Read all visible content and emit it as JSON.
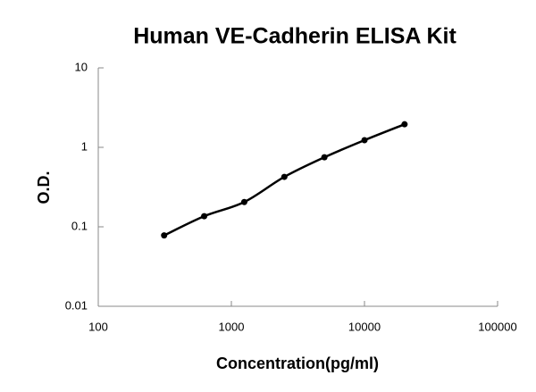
{
  "chart_data": {
    "type": "line",
    "title": "Human VE-Cadherin ELISA Kit",
    "x_label": "Concentration(pg/ml)",
    "y_label": "O.D.",
    "x": [
      312.5,
      625,
      1250,
      2500,
      5000,
      10000,
      20000
    ],
    "series": [
      {
        "color": "#000000",
        "values": [
          0.078,
          0.136,
          0.205,
          0.425,
          0.75,
          1.23,
          1.95
        ]
      }
    ],
    "xlim": [
      100,
      100000
    ],
    "xticks": [
      100,
      1000,
      10000,
      100000
    ],
    "ylim": [
      0.01,
      10
    ],
    "yticks": [
      0.01,
      0.1,
      1,
      10
    ],
    "xscale": "log",
    "yscale": "log",
    "grid": false
  }
}
